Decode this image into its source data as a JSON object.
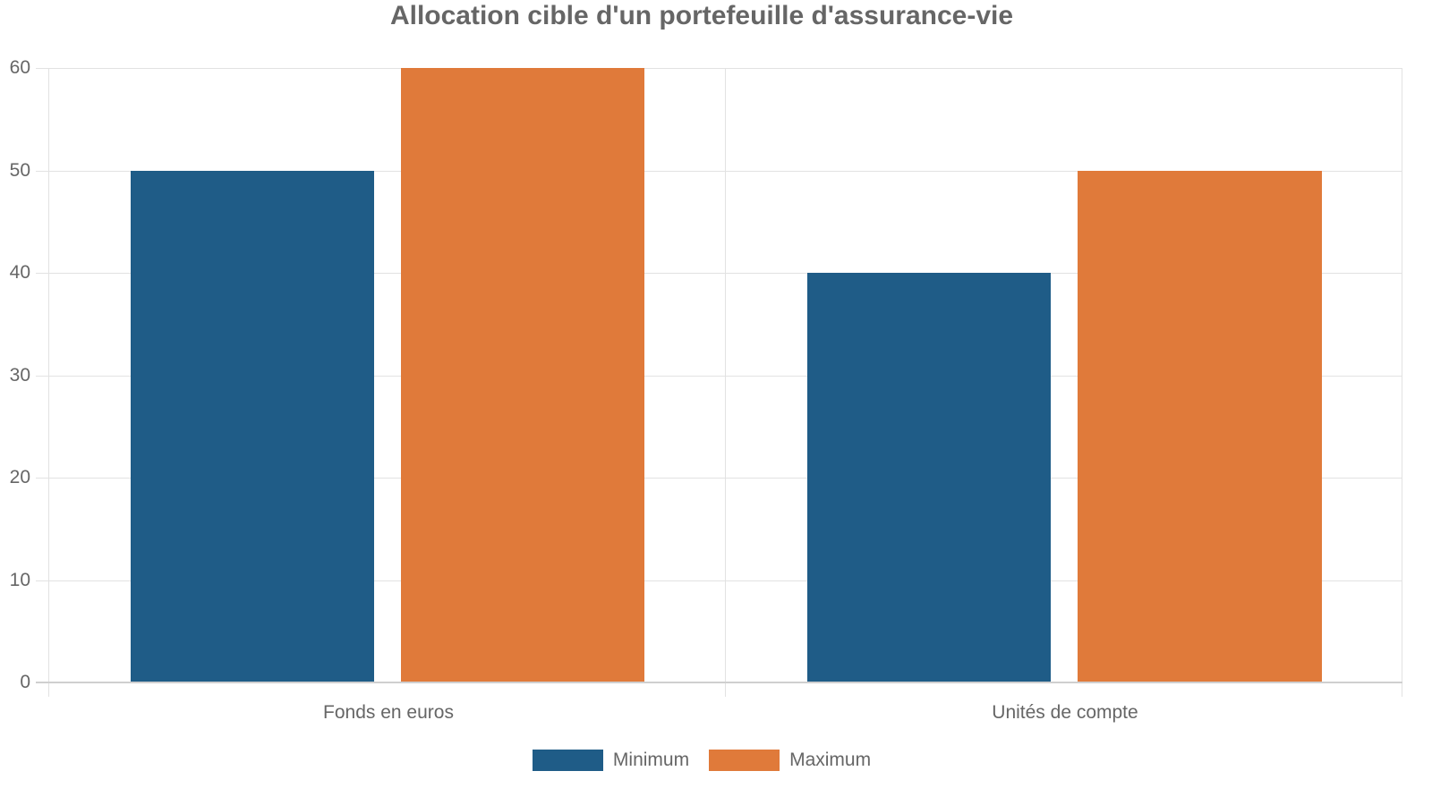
{
  "chart_data": {
    "type": "bar",
    "title": "Allocation cible d'un portefeuille d'assurance-vie",
    "categories": [
      "Fonds en euros",
      "Unités de compte"
    ],
    "series": [
      {
        "name": "Minimum",
        "color": "#1f5c87",
        "values": [
          50,
          40
        ]
      },
      {
        "name": "Maximum",
        "color": "#e07a3a",
        "values": [
          60,
          50
        ]
      }
    ],
    "xlabel": "",
    "ylabel": "",
    "ylim": [
      0,
      60
    ],
    "yticks": [
      "0",
      "10",
      "20",
      "30",
      "40",
      "50",
      "60"
    ],
    "grid": true,
    "legend_position": "bottom"
  }
}
